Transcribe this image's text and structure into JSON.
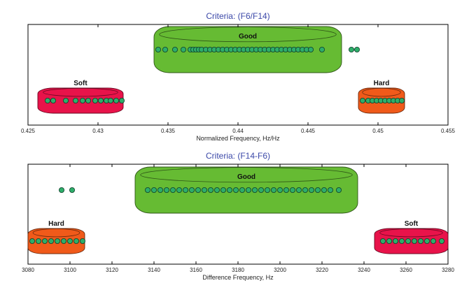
{
  "chart_data": [
    {
      "type": "scatter",
      "title": "Criteria: (F6/F14)",
      "xlabel": "Normalized Frequency, Hz/Hz",
      "ylabel": "",
      "xlim": [
        0.425,
        0.455
      ],
      "xticks": [
        "0.425",
        "0.43",
        "0.435",
        "0.44",
        "0.445",
        "0.45",
        "0.455"
      ],
      "grid": false,
      "colors": {
        "good": "#66bb33",
        "soft": "#e8134a",
        "hard": "#f05a1a",
        "point": "#2eae6a"
      },
      "clusters": [
        {
          "label": "Good",
          "color_key": "good",
          "row": "upper",
          "x_range": [
            0.434,
            0.4474
          ]
        },
        {
          "label": "Soft",
          "color_key": "soft",
          "row": "lower",
          "x_range": [
            0.4257,
            0.4318
          ]
        },
        {
          "label": "Hard",
          "color_key": "hard",
          "row": "lower",
          "x_range": [
            0.4486,
            0.4519
          ]
        }
      ],
      "series": [
        {
          "row": "upper",
          "values": [
            0.4343,
            0.4348,
            0.4355,
            0.4361,
            0.4366,
            0.4368,
            0.437,
            0.4372,
            0.4374,
            0.4377,
            0.438,
            0.4383,
            0.4386,
            0.4389,
            0.4392,
            0.4395,
            0.4398,
            0.4401,
            0.4404,
            0.4407,
            0.441,
            0.4413,
            0.4416,
            0.4419,
            0.4422,
            0.4425,
            0.4428,
            0.4431,
            0.4434,
            0.4437,
            0.444,
            0.4443,
            0.4446,
            0.4449,
            0.4452,
            0.446
          ]
        },
        {
          "row": "upper",
          "values": [
            0.4481,
            0.4485
          ]
        },
        {
          "row": "lower",
          "values": [
            0.4264,
            0.4268,
            0.4277,
            0.4284,
            0.4289,
            0.4293,
            0.4298,
            0.4302,
            0.4306,
            0.4309,
            0.4313,
            0.4317
          ]
        },
        {
          "row": "lower",
          "values": [
            0.4489,
            0.4493,
            0.4496,
            0.4499,
            0.4502,
            0.4505,
            0.4508,
            0.4511,
            0.4514,
            0.4517
          ]
        }
      ]
    },
    {
      "type": "scatter",
      "title": "Criteria: (F14-F6)",
      "xlabel": "Difference Frequency, Hz",
      "ylabel": "",
      "xlim": [
        3080,
        3280
      ],
      "xticks": [
        "3080",
        "3100",
        "3120",
        "3140",
        "3160",
        "3180",
        "3200",
        "3220",
        "3240",
        "3260",
        "3280"
      ],
      "grid": false,
      "colors": {
        "good": "#66bb33",
        "soft": "#e8134a",
        "hard": "#f05a1a",
        "point": "#2eae6a"
      },
      "clusters": [
        {
          "label": "Good",
          "color_key": "good",
          "row": "upper",
          "x_range": [
            3131,
            3237
          ]
        },
        {
          "label": "Hard",
          "color_key": "hard",
          "row": "lower",
          "x_range": [
            3080,
            3107
          ]
        },
        {
          "label": "Soft",
          "color_key": "soft",
          "row": "lower",
          "x_range": [
            3245,
            3280
          ]
        }
      ],
      "series": [
        {
          "row": "upper",
          "values": [
            3137,
            3140,
            3143,
            3146,
            3149,
            3152,
            3155,
            3158,
            3161,
            3164,
            3167,
            3170,
            3173,
            3176,
            3179,
            3182,
            3185,
            3188,
            3191,
            3194,
            3197,
            3200,
            3203,
            3206,
            3209,
            3212,
            3215,
            3218,
            3221,
            3224,
            3228
          ]
        },
        {
          "row": "upper",
          "values": [
            3096,
            3101
          ]
        },
        {
          "row": "lower",
          "values": [
            3082,
            3085,
            3088,
            3091,
            3094,
            3097,
            3100,
            3103,
            3106
          ]
        },
        {
          "row": "lower",
          "values": [
            3249,
            3252,
            3255,
            3258,
            3261,
            3264,
            3267,
            3270,
            3273,
            3277
          ]
        }
      ]
    }
  ]
}
